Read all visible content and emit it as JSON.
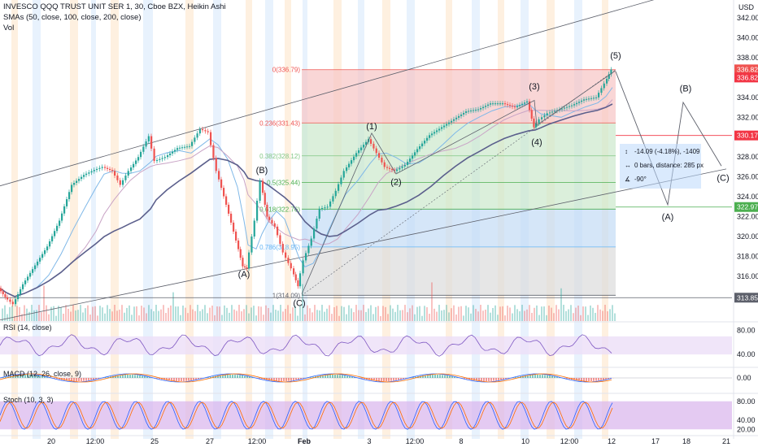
{
  "header": {
    "title": "INVESCO QQQ TRUST UNIT SER 1, 30, Cboe BZX, Heikin Ashi",
    "sma": "SMAs (50, close, 100, close, 200, close)",
    "vol": "Vol"
  },
  "panels": {
    "rsi": "RSI (14, close)",
    "macd": "MACD (12, 26, close, 9)",
    "stoch": "Stoch (10, 3, 3)"
  },
  "measure": {
    "price_change": "-14.09 (-4.18%), -1409",
    "bars": "0 bars, distance: 285 px",
    "angle": "-90°"
  },
  "price_tags": [
    {
      "value": 336.82,
      "label": "336.82",
      "color": "#ef5350"
    },
    {
      "value": 336.82,
      "label": "336.82",
      "color": "#f23645"
    },
    {
      "value": 330.17,
      "label": "330.17",
      "color": "#f23645"
    },
    {
      "value": 322.97,
      "label": "322.97",
      "color": "#4caf50"
    },
    {
      "value": 313.85,
      "label": "313.85",
      "color": "#5d606b"
    }
  ],
  "colors": {
    "up": "#26a69a",
    "down": "#ef5350",
    "sma50": "#7fb8e8",
    "sma100": "#c9a4c6",
    "sma200": "#5b5f8c",
    "fib_zone_top": "#f7c4c4",
    "fib_zone_mid": "#cce8cc",
    "fib_zone_low": "#c3dcf5",
    "fib_zone_bottom": "#dcdcdc",
    "rsi_band": "#ecdff7",
    "stoch_band": "#d9b3ec",
    "session_band": "#fde3c7",
    "session_band_blue": "#d6e7fb"
  },
  "chart_data": [
    {
      "type": "line",
      "name": "price",
      "title": "INVESCO QQQ TRUST UNIT SER 1, 30, Cboe BZX, Heikin Ashi",
      "y_unit": "USD",
      "ylim": [
        311.5,
        343.8
      ],
      "yticks": [
        314,
        316,
        318,
        320,
        322,
        324,
        326,
        328,
        330,
        332,
        334,
        336,
        338,
        340,
        342
      ],
      "xticks": [
        "20",
        "12:00",
        "25",
        "27",
        "12:00",
        "Feb",
        "3",
        "12:00",
        "8",
        "10",
        "12:00",
        "12",
        "17",
        "18",
        "21"
      ],
      "approx_path": [
        {
          "t": 0,
          "v": 314.8
        },
        {
          "t": 8,
          "v": 313.9
        },
        {
          "t": 18,
          "v": 313.2
        },
        {
          "t": 30,
          "v": 315.2
        },
        {
          "t": 45,
          "v": 317.1
        },
        {
          "t": 60,
          "v": 319.0
        },
        {
          "t": 75,
          "v": 321.6
        },
        {
          "t": 90,
          "v": 325.2
        },
        {
          "t": 105,
          "v": 326.2
        },
        {
          "t": 118,
          "v": 326.7
        },
        {
          "t": 128,
          "v": 327.0
        },
        {
          "t": 140,
          "v": 326.6
        },
        {
          "t": 150,
          "v": 325.2
        },
        {
          "t": 160,
          "v": 326.6
        },
        {
          "t": 172,
          "v": 328.0
        },
        {
          "t": 185,
          "v": 330.1
        },
        {
          "t": 192,
          "v": 327.6
        },
        {
          "t": 205,
          "v": 328.0
        },
        {
          "t": 220,
          "v": 328.9
        },
        {
          "t": 235,
          "v": 329.1
        },
        {
          "t": 248,
          "v": 330.8
        },
        {
          "t": 258,
          "v": 330.5
        },
        {
          "t": 268,
          "v": 326.6
        },
        {
          "t": 280,
          "v": 323.2
        },
        {
          "t": 292,
          "v": 319.6
        },
        {
          "t": 300,
          "v": 317.0
        },
        {
          "t": 305,
          "v": 316.8
        },
        {
          "t": 315,
          "v": 321.6
        },
        {
          "t": 322,
          "v": 325.6
        },
        {
          "t": 330,
          "v": 322.0
        },
        {
          "t": 340,
          "v": 321.0
        },
        {
          "t": 350,
          "v": 318.4
        },
        {
          "t": 360,
          "v": 316.8
        },
        {
          "t": 368,
          "v": 315.0
        },
        {
          "t": 375,
          "v": 317.6
        },
        {
          "t": 385,
          "v": 319.8
        },
        {
          "t": 395,
          "v": 322.8
        },
        {
          "t": 405,
          "v": 323.0
        },
        {
          "t": 415,
          "v": 324.6
        },
        {
          "t": 425,
          "v": 326.6
        },
        {
          "t": 440,
          "v": 328.4
        },
        {
          "t": 455,
          "v": 329.8
        },
        {
          "t": 465,
          "v": 328.4
        },
        {
          "t": 475,
          "v": 327.0
        },
        {
          "t": 487,
          "v": 326.6
        },
        {
          "t": 500,
          "v": 327.2
        },
        {
          "t": 515,
          "v": 328.8
        },
        {
          "t": 530,
          "v": 330.2
        },
        {
          "t": 545,
          "v": 331.0
        },
        {
          "t": 560,
          "v": 331.8
        },
        {
          "t": 575,
          "v": 332.6
        },
        {
          "t": 590,
          "v": 332.8
        },
        {
          "t": 605,
          "v": 333.4
        },
        {
          "t": 620,
          "v": 333.4
        },
        {
          "t": 635,
          "v": 333.0
        },
        {
          "t": 650,
          "v": 333.6
        },
        {
          "t": 658,
          "v": 331.0
        },
        {
          "t": 665,
          "v": 331.8
        },
        {
          "t": 675,
          "v": 332.4
        },
        {
          "t": 690,
          "v": 332.8
        },
        {
          "t": 705,
          "v": 333.2
        },
        {
          "t": 720,
          "v": 333.8
        },
        {
          "t": 735,
          "v": 334.0
        },
        {
          "t": 745,
          "v": 335.4
        },
        {
          "t": 753,
          "v": 336.8
        }
      ],
      "fib_levels": [
        {
          "ratio": "0",
          "price": 336.79,
          "label": "0(336.79)"
        },
        {
          "ratio": "0.236",
          "price": 331.43,
          "label": "0.236(331.43)"
        },
        {
          "ratio": "0.382",
          "price": 328.12,
          "label": "0.382(328.12)"
        },
        {
          "ratio": "0.5",
          "price": 325.44,
          "label": "0.5(325.44)"
        },
        {
          "ratio": "0.618",
          "price": 322.76,
          "label": "0.618(322.76)"
        },
        {
          "ratio": "0.786",
          "price": 318.95,
          "label": "0.786(318.95)"
        },
        {
          "ratio": "1",
          "price": 314.09,
          "label": "1(314.09)"
        }
      ],
      "wave_labels": [
        {
          "label": "(A)",
          "t": 300,
          "v": 315.9
        },
        {
          "label": "(B)",
          "t": 322,
          "v": 326.4
        },
        {
          "label": "(C)",
          "t": 368,
          "v": 313.0
        },
        {
          "label": "(1)",
          "t": 457,
          "v": 330.8
        },
        {
          "label": "(2)",
          "t": 487,
          "v": 325.2
        },
        {
          "label": "(3)",
          "t": 657,
          "v": 334.8
        },
        {
          "label": "(4)",
          "t": 660,
          "v": 329.2
        },
        {
          "label": "(5)",
          "t": 757,
          "v": 337.9
        },
        {
          "label": "(B)",
          "t": 843,
          "v": 334.6
        },
        {
          "label": "(A)",
          "t": 821,
          "v": 321.7
        },
        {
          "label": "(C)",
          "t": 889,
          "v": 325.6
        }
      ],
      "projection_path": [
        {
          "t": 757,
          "v": 336.6
        },
        {
          "t": 821,
          "v": 323.2
        },
        {
          "t": 840,
          "v": 333.5
        },
        {
          "t": 887,
          "v": 327.1
        }
      ]
    },
    {
      "type": "line",
      "name": "RSI",
      "ylim": [
        20,
        90
      ],
      "yticks": [
        80,
        40
      ],
      "band": [
        40,
        70
      ]
    },
    {
      "type": "line",
      "name": "MACD",
      "yticks": [
        0.0
      ],
      "zero": 0.0
    },
    {
      "type": "line",
      "name": "Stoch",
      "ylim": [
        10,
        90
      ],
      "yticks": [
        80,
        40,
        20
      ],
      "band": [
        20,
        80
      ]
    }
  ]
}
